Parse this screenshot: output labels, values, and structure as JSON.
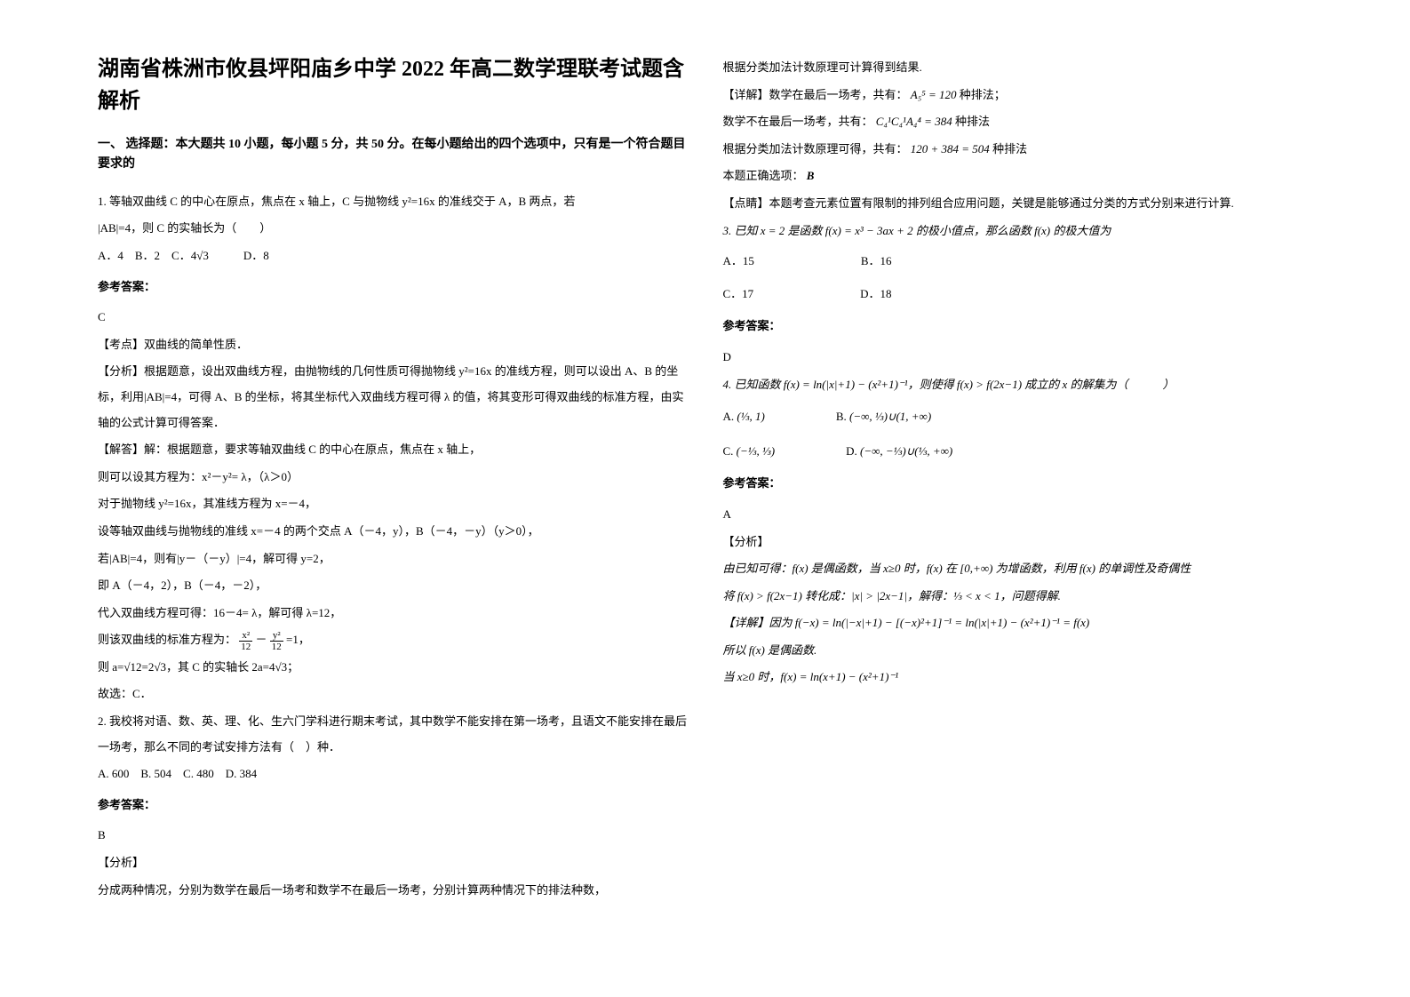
{
  "title": "湖南省株洲市攸县坪阳庙乡中学 2022 年高二数学理联考试题含解析",
  "section1_head": "一、 选择题：本大题共 10 小题，每小题 5 分，共 50 分。在每小题给出的四个选项中，只有是一个符合题目要求的",
  "q1": {
    "stem1": "1. 等轴双曲线 C 的中心在原点，焦点在 x 轴上，C 与抛物线 y²=16x 的准线交于 A，B 两点，若",
    "stem2": "|AB|=4，则 C 的实轴长为（　　）",
    "opts": "A．4　B．2　C．4√3　　　D．8",
    "ans_label": "参考答案：",
    "ans": "C",
    "kaodian": "【考点】双曲线的简单性质．",
    "fenxi": "【分析】根据题意，设出双曲线方程，由抛物线的几何性质可得抛物线 y²=16x 的准线方程，则可以设出 A、B 的坐标，利用|AB|=4，可得 A、B 的坐标，将其坐标代入双曲线方程可得 λ 的值，将其变形可得双曲线的标准方程，由实轴的公式计算可得答案．",
    "jieda1": "【解答】解：根据题意，要求等轴双曲线 C 的中心在原点，焦点在 x 轴上，",
    "jieda2": "则可以设其方程为：x²－y²= λ，（λ＞0）",
    "jieda3": "对于抛物线 y²=16x，其准线方程为 x=－4，",
    "jieda4": "设等轴双曲线与抛物线的准线 x=－4 的两个交点 A（－4，y），B（－4，－y）（y＞0），",
    "jieda5": "若|AB|=4，则有|y－（－y）|=4，解可得 y=2，",
    "jieda6": "即 A（－4，2），B（－4，－2），",
    "jieda7": "代入双曲线方程可得：16－4= λ，解可得 λ=12，",
    "jieda8": "则该双曲线的标准方程为：",
    "jieda8_frac1_num": "x²",
    "jieda8_frac1_den": "12",
    "jieda8_mid": " － ",
    "jieda8_frac2_num": "y²",
    "jieda8_frac2_den": "12",
    "jieda8_tail": "=1，",
    "jieda9": "则 a=√12=2√3，其 C 的实轴长 2a=4√3；",
    "jieda10": "故选：C．"
  },
  "q2": {
    "stem1": "2. 我校将对语、数、英、理、化、生六门学科进行期末考试，其中数学不能安排在第一场考，且语文不能安排在最后一场考，那么不同的考试安排方法有（　）种．",
    "opts": "A. 600　B. 504　C. 480　D. 384",
    "ans_label": "参考答案：",
    "ans": "B",
    "fenxi_label": "【分析】",
    "fenxi": "分成两种情况，分别为数学在最后一场考和数学不在最后一场考，分别计算两种情况下的排法种数，"
  },
  "right": {
    "r1": "根据分类加法计数原理可计算得到结果.",
    "r2": "【详解】数学在最后一场考，共有：",
    "r2_formula": "A₅⁵ = 120",
    "r2_tail": " 种排法；",
    "r3": "数学不在最后一场考，共有：",
    "r3_formula": "C₄¹C₄¹A₄⁴ = 384",
    "r3_tail": " 种排法",
    "r4": "根据分类加法计数原理可得，共有：",
    "r4_formula": "120 + 384 = 504",
    "r4_tail": " 种排法",
    "r5": "本题正确选项：",
    "r5_ans": "B",
    "r6": "【点睛】本题考查元素位置有限制的排列组合应用问题，关键是能够通过分类的方式分别来进行计算.",
    "q3_stem": "3. 已知 x = 2 是函数 f(x) = x³ − 3ax + 2 的极小值点，那么函数 f(x) 的极大值为",
    "q3_optA": "A．15",
    "q3_optB": "B．16",
    "q3_optC": "C．17",
    "q3_optD": "D．18",
    "q3_ans_label": "参考答案：",
    "q3_ans": "D",
    "q4_stem": "4. 已知函数 f(x) = ln(|x|+1) − (x²+1)⁻¹，则使得 f(x) > f(2x−1) 成立的 x 的解集为（　　　）",
    "q4_optA_label": "A.",
    "q4_optA": "(⅓, 1)",
    "q4_optB_label": "B.",
    "q4_optB": "(−∞, ⅓)∪(1, +∞)",
    "q4_optC_label": "C.",
    "q4_optC": "(−⅓, ⅓)",
    "q4_optD_label": "D.",
    "q4_optD": "(−∞, −⅓)∪(⅓, +∞)",
    "q4_ans_label": "参考答案：",
    "q4_ans": "A",
    "q4_fenxi_label": "【分析】",
    "q4_fenxi": "由已知可得：f(x) 是偶函数，当 x≥0 时，f(x) 在 [0,+∞) 为增函数，利用 f(x) 的单调性及奇偶性",
    "q4_fenxi2": "将 f(x) > f(2x−1) 转化成：|x| > |2x−1|，解得：⅓ < x < 1，问题得解.",
    "q4_xj": "【详解】因为 f(−x) = ln(|−x|+1) − [(−x)²+1]⁻¹ = ln(|x|+1) − (x²+1)⁻¹ = f(x)",
    "q4_xj2": "所以 f(x) 是偶函数.",
    "q4_xj3": "当 x≥0 时，f(x) = ln(x+1) − (x²+1)⁻¹"
  },
  "colors": {
    "text": "#000000",
    "bg": "#ffffff"
  },
  "fonts": {
    "body": "SimSun",
    "math": "Times New Roman",
    "title_size": 24,
    "body_size": 13
  }
}
